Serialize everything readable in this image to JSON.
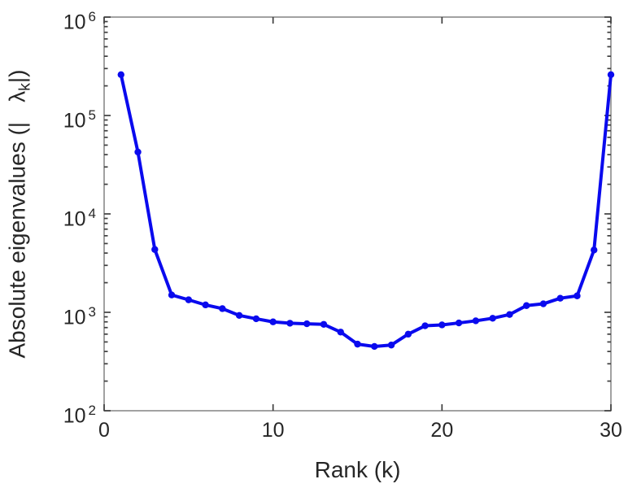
{
  "figure": {
    "background": "#ffffff",
    "xlabel": "Rank (k)",
    "ylabel_prefix": "Absolute eigenvalues (|",
    "ylabel_symbol": "λ",
    "ylabel_subscript": "k",
    "ylabel_suffix": "|)"
  },
  "chart_data": {
    "type": "line",
    "title": "",
    "xlabel": "Rank (k)",
    "ylabel": "Absolute eigenvalues (|lambda_k|)",
    "x": [
      1,
      2,
      3,
      4,
      5,
      6,
      7,
      8,
      9,
      10,
      11,
      12,
      13,
      14,
      15,
      16,
      17,
      18,
      19,
      20,
      21,
      22,
      23,
      24,
      25,
      26,
      27,
      28,
      29,
      30
    ],
    "y": [
      260000,
      42500,
      4350,
      1500,
      1340,
      1190,
      1090,
      930,
      860,
      800,
      775,
      765,
      755,
      630,
      475,
      450,
      465,
      600,
      730,
      745,
      780,
      820,
      870,
      950,
      1170,
      1220,
      1390,
      1470,
      4300,
      260000
    ],
    "xlim": [
      0,
      30
    ],
    "x_ticks": [
      0,
      10,
      20,
      30
    ],
    "y_scale": "log",
    "ylim": [
      100,
      1000000
    ],
    "ylim_exponents": [
      2,
      6
    ],
    "y_tick_base": "10",
    "y_tick_exponents": [
      6,
      5,
      4,
      3,
      2
    ],
    "y_minor_multiples": [
      2,
      3,
      4,
      5,
      6,
      7,
      8,
      9
    ],
    "grid": false,
    "legend": null,
    "line_color": "#0a0aee",
    "marker": "circle",
    "axis_color": "#8a8a8a",
    "tick_color": "#3f3f3f",
    "label_color": "#262626"
  }
}
